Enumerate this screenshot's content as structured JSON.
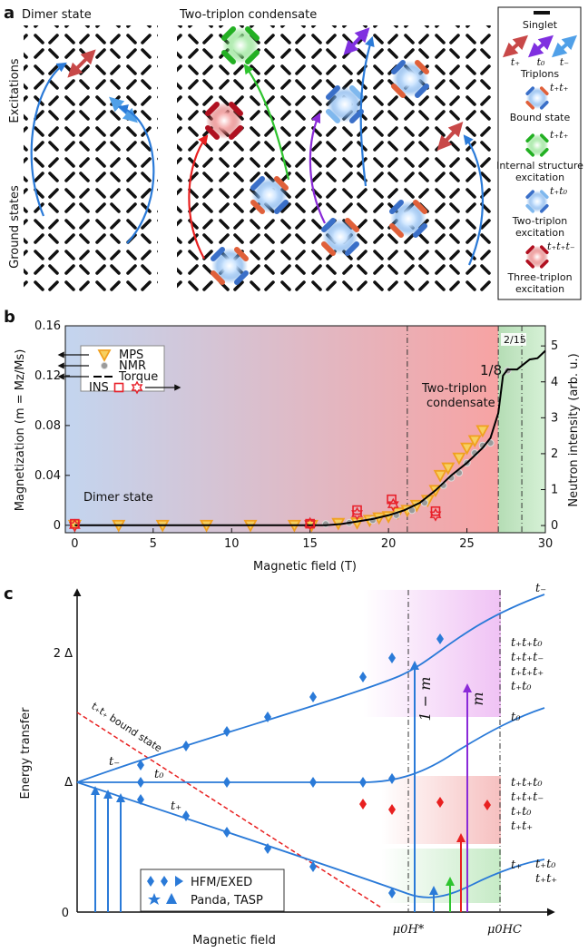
{
  "panel_a": {
    "label": "a",
    "left_title": "Dimer state",
    "right_title": "Two-triplon condensate",
    "row_labels": [
      "Excitations",
      "Ground states"
    ],
    "legend": {
      "singlet": "Singlet",
      "triplons": [
        "t₊",
        "t₀",
        "t₋"
      ],
      "triplons_label": "Triplons",
      "items": [
        {
          "state": "t₊t₊",
          "label": [
            "Bound state"
          ]
        },
        {
          "state": "t₊t₊",
          "label": [
            "Internal structure",
            "excitation"
          ]
        },
        {
          "state": "t₊t₀",
          "label": [
            "Two-triplon",
            "excitation"
          ]
        },
        {
          "state": "t₊t₊t₋",
          "label": [
            "Three-triplon",
            "excitation"
          ]
        }
      ]
    }
  },
  "chart_data": {
    "type": "scatter",
    "panel_label": "b",
    "x_label": "Magnetic field (T)",
    "y_label": "Magnetization (m = Mz/Ms)",
    "y2_label": "Neutron intensity (arb. u.)",
    "xlim": [
      -0.6,
      30
    ],
    "xticks": [
      0,
      5,
      10,
      15,
      20,
      25,
      30
    ],
    "ylim": [
      -0.006,
      0.16
    ],
    "yticks": [
      0,
      0.04,
      0.08,
      0.12,
      0.16
    ],
    "y2lim": [
      -0.2,
      5.56
    ],
    "y2ticks": [
      0,
      1,
      2,
      3,
      4,
      5
    ],
    "regions": [
      {
        "x": [
          -0.6,
          27
        ],
        "color": "#c3d5ef",
        "color_to": "#f7a3a3"
      },
      {
        "x": [
          27,
          30
        ],
        "color": "#b5ddb5",
        "color_to": "#d6f1d6"
      }
    ],
    "vlines": [
      21.2,
      27,
      28.5
    ],
    "annotations": [
      "Dimer state",
      "Two-triplon",
      "condensate",
      "1/8",
      "2/15"
    ],
    "series": [
      {
        "name": "MPS",
        "marker": "triangle",
        "color": "#f0a020",
        "x": [
          0,
          2.8,
          5.6,
          8.4,
          11.2,
          14,
          15.1,
          16.8,
          18,
          18.8,
          19.4,
          20,
          20.6,
          21.2,
          21.8,
          22.5,
          23,
          23.3,
          23.8,
          24.5,
          25,
          25.5,
          26
        ],
        "values": [
          0,
          0,
          0,
          0,
          0,
          0,
          0,
          0.0015,
          0.002,
          0.004,
          0.006,
          0.007,
          0.01,
          0.012,
          0.016,
          0.02,
          0.028,
          0.04,
          0.046,
          0.054,
          0.062,
          0.068,
          0.076
        ]
      },
      {
        "name": "NMR",
        "marker": "circle",
        "color": "#9a9a9a",
        "x": [
          16,
          17.5,
          19,
          20.5,
          21.5,
          22.3,
          23.5,
          24,
          24.5,
          25,
          25.5,
          26,
          26.5,
          27.6
        ],
        "values": [
          0.001,
          0.002,
          0.004,
          0.008,
          0.012,
          0.018,
          0.032,
          0.038,
          0.042,
          0.05,
          0.058,
          0.064,
          0.066,
          0.124
        ]
      },
      {
        "name": "Torque",
        "marker": "line",
        "color": "#000000",
        "x": [
          0,
          16,
          17,
          18,
          19,
          20,
          21,
          22,
          23,
          24,
          25,
          26,
          26.5,
          27,
          27.3,
          27.6,
          28.2,
          28.5,
          29,
          29.5,
          30
        ],
        "values": [
          0,
          0,
          0.001,
          0.003,
          0.005,
          0.008,
          0.012,
          0.018,
          0.028,
          0.04,
          0.05,
          0.062,
          0.07,
          0.09,
          0.12,
          0.125,
          0.125,
          0.128,
          0.133,
          0.134,
          0.14
        ]
      },
      {
        "name": "INS",
        "marker": "square",
        "color": "#e8202a",
        "axis": "y2",
        "x": [
          0,
          15,
          18,
          20.2,
          23
        ],
        "values": [
          0.05,
          0.05,
          0.43,
          0.73,
          0.4
        ]
      },
      {
        "marker": "star",
        "color": "#e8202a",
        "axis": "y2",
        "x": [
          0,
          15,
          18,
          20.3,
          23
        ],
        "values": [
          0,
          0.05,
          0.33,
          0.58,
          0.3
        ]
      }
    ]
  },
  "panel_c": {
    "label": "c",
    "y_label": "Energy transfer",
    "x_label": "Magnetic field",
    "y_ticks": [
      "2 Δ",
      "Δ",
      "0"
    ],
    "x_ticks": [
      "μ0H*",
      "μ0HC"
    ],
    "branches": [
      "t₋",
      "t₀",
      "t₊"
    ],
    "branch_labels_left": [
      "t₋",
      "t₀",
      "t₊"
    ],
    "bound_state": "t₊t₊ bound state",
    "arrows": [
      "1 − m",
      "m"
    ],
    "states_top": [
      "t₊t₊t₀",
      "t₊t₊t₋",
      "t₊t₊t₊",
      "t₊t₀"
    ],
    "states_mid": [
      "t₊t₊t₀",
      "t₊t₊t₋",
      "t₊t₀",
      "t₊t₊"
    ],
    "states_low": [
      "t₊t₀",
      "t₊t₊"
    ],
    "legend": [
      "HFM/EXED",
      "Panda, TASP"
    ]
  }
}
